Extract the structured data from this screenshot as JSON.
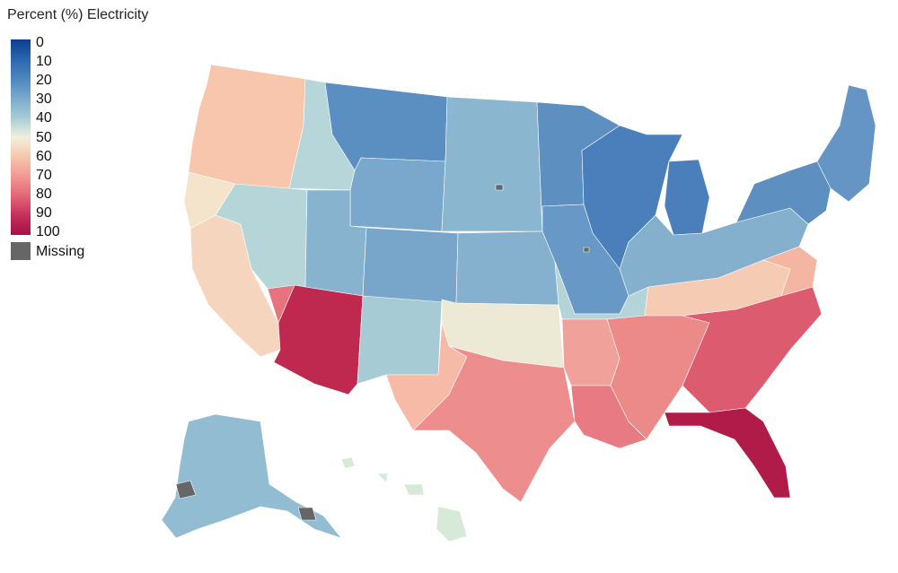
{
  "legend": {
    "title": "Percent (%) Electricity",
    "ticks": [
      "0",
      "10",
      "20",
      "30",
      "40",
      "50",
      "60",
      "70",
      "80",
      "90",
      "100"
    ],
    "missing_label": "Missing",
    "missing_color": "#666666",
    "colors": [
      "#0b3d91",
      "#2c66ae",
      "#4f86bf",
      "#79a9cc",
      "#a6cbd6",
      "#f1f1dc",
      "#f7c6ad",
      "#f19891",
      "#e36778",
      "#c7305c",
      "#a50f45"
    ]
  },
  "regions": [
    {
      "name": "washington-oregon",
      "value": 62,
      "color": "#f7c6ad"
    },
    {
      "name": "west-coast-north",
      "value": 52,
      "color": "#f4e4cc"
    },
    {
      "name": "california",
      "value": 58,
      "color": "#f6d5bf"
    },
    {
      "name": "idaho",
      "value": 40,
      "color": "#b7d6da"
    },
    {
      "name": "nevada",
      "value": 40,
      "color": "#b5d5d8"
    },
    {
      "name": "montana",
      "value": 22,
      "color": "#5b8fc2"
    },
    {
      "name": "wyoming",
      "value": 28,
      "color": "#7aa8cc"
    },
    {
      "name": "utah",
      "value": 32,
      "color": "#87b3cf"
    },
    {
      "name": "arizona",
      "value": 92,
      "color": "#c0294f"
    },
    {
      "name": "nevada-south",
      "value": 75,
      "color": "#e8727d"
    },
    {
      "name": "new-mexico",
      "value": 38,
      "color": "#a7cbd5"
    },
    {
      "name": "colorado",
      "value": 28,
      "color": "#78a6cb"
    },
    {
      "name": "dakotas",
      "value": 32,
      "color": "#8ab6d0"
    },
    {
      "name": "nebraska-kansas",
      "value": 30,
      "color": "#85b1ce"
    },
    {
      "name": "oklahoma",
      "value": 50,
      "color": "#ecead5"
    },
    {
      "name": "texas",
      "value": 72,
      "color": "#ee8d8e"
    },
    {
      "name": "texas-west",
      "value": 62,
      "color": "#f6baa7"
    },
    {
      "name": "minnesota",
      "value": 22,
      "color": "#5d8fc1"
    },
    {
      "name": "wisconsin-michigan",
      "value": 18,
      "color": "#4a7fbb"
    },
    {
      "name": "iowa-illinois",
      "value": 24,
      "color": "#6898c6"
    },
    {
      "name": "missouri",
      "value": 40,
      "color": "#b4d4d9"
    },
    {
      "name": "ohio-valley",
      "value": 30,
      "color": "#84b0ce"
    },
    {
      "name": "kentucky-tennessee",
      "value": 60,
      "color": "#f6cbb3"
    },
    {
      "name": "arkansas-louisiana",
      "value": 70,
      "color": "#f0a19a"
    },
    {
      "name": "louisiana",
      "value": 75,
      "color": "#e87a83"
    },
    {
      "name": "mississippi-alabama",
      "value": 72,
      "color": "#ec8a89"
    },
    {
      "name": "georgia-carolinas",
      "value": 82,
      "color": "#dd5b6f"
    },
    {
      "name": "florida",
      "value": 95,
      "color": "#b01b4a"
    },
    {
      "name": "virginia",
      "value": 65,
      "color": "#f4b5a2"
    },
    {
      "name": "northeast",
      "value": 22,
      "color": "#5d8fc1"
    },
    {
      "name": "new-england",
      "value": 24,
      "color": "#6595c4"
    },
    {
      "name": "alaska",
      "value": 35,
      "color": "#92bcd2"
    },
    {
      "name": "hawaii",
      "value": 45,
      "color": "#d6ead7"
    }
  ]
}
